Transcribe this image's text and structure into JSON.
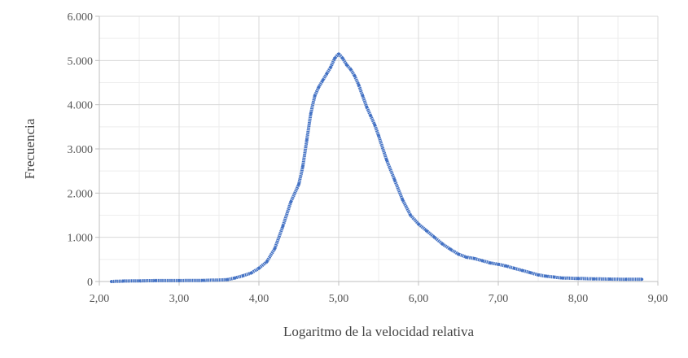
{
  "chart_data": {
    "type": "scatter",
    "title": "",
    "xlabel": "Logaritmo de la velocidad relativa",
    "ylabel": "Frecuencia",
    "xlim": [
      2.0,
      9.0
    ],
    "ylim": [
      0,
      6000
    ],
    "x_ticks": [
      2,
      3,
      4,
      5,
      6,
      7,
      8,
      9
    ],
    "x_tick_labels": [
      "2,00",
      "3,00",
      "4,00",
      "5,00",
      "6,00",
      "7,00",
      "8,00",
      "9,00"
    ],
    "y_ticks": [
      0,
      1000,
      2000,
      3000,
      4000,
      5000,
      6000
    ],
    "y_tick_labels": [
      "0",
      "1.000",
      "2.000",
      "3.000",
      "4.000",
      "5.000",
      "6.000"
    ],
    "grid": true,
    "legend": "none",
    "series": [
      {
        "color": "#4472C4",
        "x": [
          2.15,
          2.3,
          2.5,
          2.7,
          3.0,
          3.3,
          3.6,
          3.7,
          3.8,
          3.9,
          4.0,
          4.1,
          4.2,
          4.3,
          4.4,
          4.5,
          4.55,
          4.6,
          4.65,
          4.7,
          4.75,
          4.8,
          4.85,
          4.9,
          4.95,
          5.0,
          5.05,
          5.1,
          5.15,
          5.2,
          5.25,
          5.3,
          5.35,
          5.4,
          5.45,
          5.5,
          5.6,
          5.7,
          5.8,
          5.9,
          6.0,
          6.1,
          6.2,
          6.3,
          6.4,
          6.5,
          6.6,
          6.7,
          6.8,
          6.9,
          7.0,
          7.1,
          7.2,
          7.3,
          7.4,
          7.5,
          7.6,
          7.7,
          7.8,
          8.0,
          8.2,
          8.4,
          8.6,
          8.8
        ],
        "y": [
          0,
          10,
          15,
          20,
          20,
          25,
          40,
          80,
          130,
          190,
          300,
          450,
          750,
          1250,
          1800,
          2200,
          2600,
          3200,
          3800,
          4200,
          4400,
          4550,
          4700,
          4850,
          5050,
          5150,
          5050,
          4900,
          4800,
          4650,
          4450,
          4200,
          3950,
          3750,
          3550,
          3300,
          2750,
          2300,
          1850,
          1500,
          1300,
          1150,
          1000,
          850,
          730,
          620,
          550,
          520,
          470,
          420,
          390,
          350,
          300,
          250,
          200,
          150,
          120,
          100,
          80,
          70,
          60,
          55,
          50,
          50
        ]
      }
    ]
  }
}
